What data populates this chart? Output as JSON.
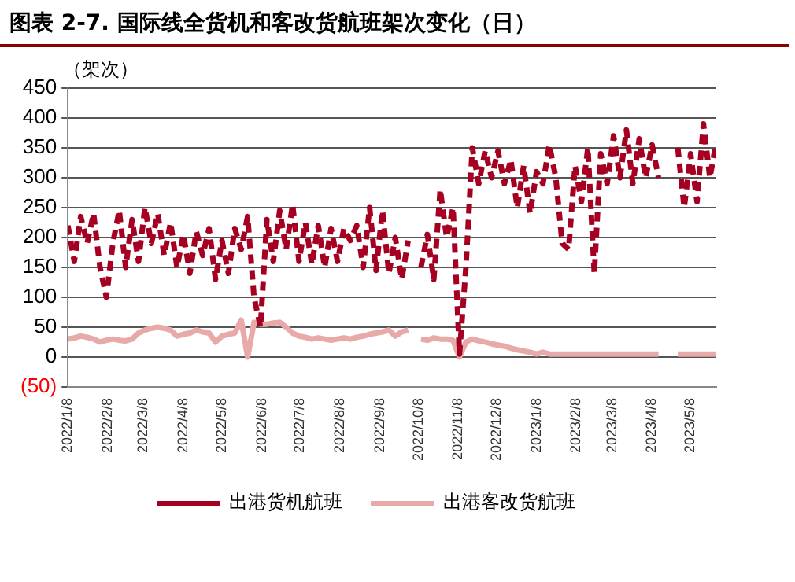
{
  "chart_data": {
    "type": "line",
    "title": "图表 2-7. 国际线全货机和客改货航班架次变化（日）",
    "ylabel": "（架次）",
    "x": [
      "2022-01-08",
      "2022-01-13",
      "2022-01-18",
      "2022-01-23",
      "2022-01-28",
      "2022-02-02",
      "2022-02-07",
      "2022-02-12",
      "2022-02-17",
      "2022-02-22",
      "2022-02-27",
      "2022-03-04",
      "2022-03-09",
      "2022-03-14",
      "2022-03-19",
      "2022-03-24",
      "2022-03-29",
      "2022-04-03",
      "2022-04-08",
      "2022-04-13",
      "2022-04-18",
      "2022-04-23",
      "2022-04-28",
      "2022-05-03",
      "2022-05-08",
      "2022-05-13",
      "2022-05-18",
      "2022-05-23",
      "2022-05-28",
      "2022-06-02",
      "2022-06-07",
      "2022-06-12",
      "2022-06-17",
      "2022-06-22",
      "2022-06-27",
      "2022-07-02",
      "2022-07-07",
      "2022-07-12",
      "2022-07-17",
      "2022-07-22",
      "2022-07-27",
      "2022-08-01",
      "2022-08-06",
      "2022-08-11",
      "2022-08-16",
      "2022-08-21",
      "2022-08-26",
      "2022-08-31",
      "2022-09-05",
      "2022-09-10",
      "2022-09-15",
      "2022-09-20",
      "2022-09-25",
      "2022-09-30",
      "2022-10-05",
      "2022-10-10",
      "2022-10-15",
      "2022-10-20",
      "2022-10-25",
      "2022-10-30",
      "2022-11-04",
      "2022-11-09",
      "2022-11-14",
      "2022-11-19",
      "2022-11-24",
      "2022-11-29",
      "2022-12-04",
      "2022-12-09",
      "2022-12-14",
      "2022-12-19",
      "2022-12-24",
      "2022-12-29",
      "2023-01-03",
      "2023-01-08",
      "2023-01-13",
      "2023-01-18",
      "2023-01-23",
      "2023-01-28",
      "2023-02-02",
      "2023-02-07",
      "2023-02-12",
      "2023-02-17",
      "2023-02-22",
      "2023-02-27",
      "2023-03-04",
      "2023-03-09",
      "2023-03-14",
      "2023-03-19",
      "2023-03-24",
      "2023-03-29",
      "2023-04-03",
      "2023-04-08",
      "2023-04-13",
      "2023-04-18",
      "2023-04-23",
      "2023-04-28",
      "2023-05-03",
      "2023-05-08",
      "2023-05-13",
      "2023-05-18",
      "2023-05-23",
      "2023-05-28"
    ],
    "series": [
      {
        "name": "出港货机航班",
        "color": "#a50021",
        "line_style": "dashed",
        "values": [
          220,
          160,
          235,
          190,
          240,
          150,
          100,
          190,
          245,
          150,
          230,
          160,
          250,
          190,
          240,
          170,
          225,
          150,
          205,
          140,
          210,
          170,
          215,
          130,
          195,
          140,
          215,
          180,
          235,
          100,
          50,
          230,
          160,
          245,
          180,
          255,
          160,
          225,
          155,
          220,
          150,
          215,
          160,
          215,
          195,
          220,
          150,
          250,
          145,
          245,
          140,
          200,
          130,
          195,
          null,
          150,
          205,
          130,
          280,
          200,
          250,
          5,
          150,
          350,
          290,
          345,
          300,
          345,
          290,
          330,
          250,
          320,
          240,
          310,
          290,
          355,
          300,
          190,
          180,
          320,
          260,
          350,
          140,
          340,
          290,
          370,
          300,
          380,
          290,
          365,
          300,
          355,
          300,
          null,
          null,
          350,
          250,
          340,
          260,
          390,
          300,
          360
        ]
      },
      {
        "name": "出港客改货航班",
        "color": "#e8a9a9",
        "line_style": "solid",
        "values": [
          30,
          32,
          35,
          33,
          30,
          25,
          28,
          30,
          28,
          27,
          30,
          40,
          45,
          48,
          50,
          48,
          45,
          35,
          38,
          40,
          45,
          42,
          40,
          25,
          35,
          38,
          40,
          62,
          0,
          58,
          55,
          55,
          57,
          58,
          50,
          40,
          35,
          33,
          30,
          32,
          30,
          28,
          30,
          32,
          30,
          33,
          35,
          38,
          40,
          42,
          45,
          35,
          42,
          45,
          null,
          30,
          28,
          32,
          30,
          30,
          28,
          0,
          25,
          30,
          27,
          25,
          22,
          20,
          18,
          15,
          12,
          10,
          8,
          5,
          8,
          5,
          5,
          5,
          5,
          5,
          5,
          5,
          5,
          5,
          5,
          5,
          5,
          5,
          5,
          5,
          5,
          5,
          5,
          null,
          null,
          5,
          5,
          5,
          5,
          5,
          5,
          5
        ]
      }
    ],
    "xlim": [
      "2022-01-08",
      "2023-05-28"
    ],
    "xticks": [
      {
        "value": "2022-01-08",
        "label": "2022/1/8"
      },
      {
        "value": "2022-02-08",
        "label": "2022/2/8"
      },
      {
        "value": "2022-03-08",
        "label": "2022/3/8"
      },
      {
        "value": "2022-04-08",
        "label": "2022/4/8"
      },
      {
        "value": "2022-05-08",
        "label": "2022/5/8"
      },
      {
        "value": "2022-06-08",
        "label": "2022/6/8"
      },
      {
        "value": "2022-07-08",
        "label": "2022/7/8"
      },
      {
        "value": "2022-08-08",
        "label": "2022/8/8"
      },
      {
        "value": "2022-09-08",
        "label": "2022/9/8"
      },
      {
        "value": "2022-10-08",
        "label": "2022/10/8"
      },
      {
        "value": "2022-11-08",
        "label": "2022/11/8"
      },
      {
        "value": "2022-12-08",
        "label": "2022/12/8"
      },
      {
        "value": "2023-01-08",
        "label": "2023/1/8"
      },
      {
        "value": "2023-02-08",
        "label": "2023/2/8"
      },
      {
        "value": "2023-03-08",
        "label": "2023/3/8"
      },
      {
        "value": "2023-04-08",
        "label": "2023/4/8"
      },
      {
        "value": "2023-05-08",
        "label": "2023/5/8"
      }
    ],
    "ylim": [
      -50,
      450
    ],
    "yticks": [
      {
        "value": -50,
        "label": "(50)"
      },
      0,
      50,
      100,
      150,
      200,
      250,
      300,
      350,
      400,
      450
    ],
    "grid": "y",
    "legend": "bottom",
    "marker": "none"
  }
}
